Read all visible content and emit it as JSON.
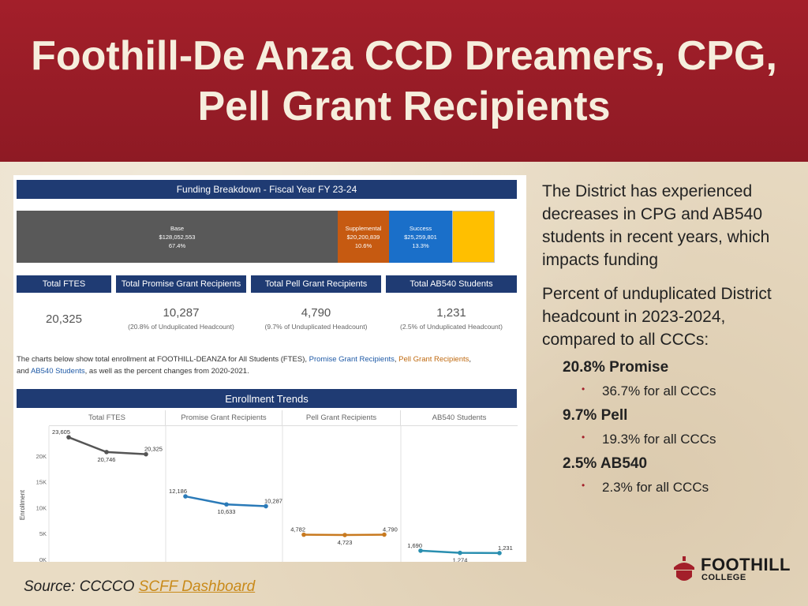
{
  "title": "Foothill-De Anza CCD Dreamers, CPG, Pell Grant Recipients",
  "dashboard": {
    "funding_title": "Funding Breakdown - Fiscal Year FY 23-24",
    "funding": [
      {
        "name": "Base",
        "amount": "$128,052,553",
        "pct": "67.4%",
        "color": "#595959"
      },
      {
        "name": "Supplemental",
        "amount": "$20,200,839",
        "pct": "10.6%",
        "color": "#c65a11"
      },
      {
        "name": "Success",
        "amount": "$25,259,801",
        "pct": "13.3%",
        "color": "#1a6fc9"
      },
      {
        "name": "",
        "amount": "",
        "pct": "",
        "color": "#ffbf00"
      }
    ],
    "stats": [
      {
        "head": "Total FTES",
        "value": "20,325",
        "sub": ""
      },
      {
        "head": "Total Promise Grant Recipients",
        "value": "10,287",
        "sub": "(20.8% of Unduplicated Headcount)"
      },
      {
        "head": "Total Pell Grant Recipients",
        "value": "4,790",
        "sub": "(9.7% of Unduplicated Headcount)"
      },
      {
        "head": "Total AB540 Students",
        "value": "1,231",
        "sub": "(2.5% of Unduplicated Headcount)"
      }
    ],
    "description": {
      "part1": "The charts below show total enrollment at FOOTHILL-DEANZA for All Students (FTES), ",
      "promise": "Promise Grant Recipients",
      "comma1": ", ",
      "pell": "Pell Grant Recipients",
      "comma2": ",",
      "line2_prefix": "and ",
      "ab540": "AB540 Students",
      "part2": ", as well as the percent changes from 2020-2021."
    },
    "trends_title": "Enrollment Trends",
    "ylabel": "Enrollment",
    "y_ticks": [
      "20K",
      "15K",
      "10K",
      "5K",
      "0K"
    ]
  },
  "chart_data": {
    "type": "line",
    "title": "Enrollment Trends",
    "ylabel": "Enrollment",
    "ylim": [
      0,
      25000
    ],
    "panels": [
      {
        "name": "Total FTES",
        "color": "#555555",
        "values": [
          23605,
          20746,
          20325
        ],
        "labels": [
          "23,605",
          "20,746",
          "20,325"
        ]
      },
      {
        "name": "Promise Grant Recipients",
        "color": "#2a7ab8",
        "values": [
          12186,
          10633,
          10287
        ],
        "labels": [
          "12,186",
          "10,633",
          "10,287"
        ]
      },
      {
        "name": "Pell Grant Recipients",
        "color": "#c87a20",
        "values": [
          4782,
          4723,
          4790
        ],
        "labels": [
          "4,782",
          "4,723",
          "4,790"
        ]
      },
      {
        "name": "AB540 Students",
        "color": "#2a8fb0",
        "values": [
          1690,
          1274,
          1231
        ],
        "labels": [
          "1,690",
          "1,274",
          "1,231"
        ]
      }
    ]
  },
  "text": {
    "p1": "The District has experienced decreases in CPG and AB540 students in recent years, which impacts funding",
    "p2": "Percent of unduplicated District headcount in 2023-2024, compared to all CCCs:",
    "items": [
      {
        "head": "20.8% Promise",
        "sub": "36.7% for all CCCs"
      },
      {
        "head": "9.7% Pell",
        "sub": "19.3% for all CCCs"
      },
      {
        "head": "2.5% AB540",
        "sub": "2.3% for all CCCs"
      }
    ],
    "bullet": "•"
  },
  "source": {
    "prefix": "Source: CCCCO ",
    "link": "SCFF Dashboard"
  },
  "logo": {
    "word1": "FOOTHILL",
    "word2": "COLLEGE"
  }
}
